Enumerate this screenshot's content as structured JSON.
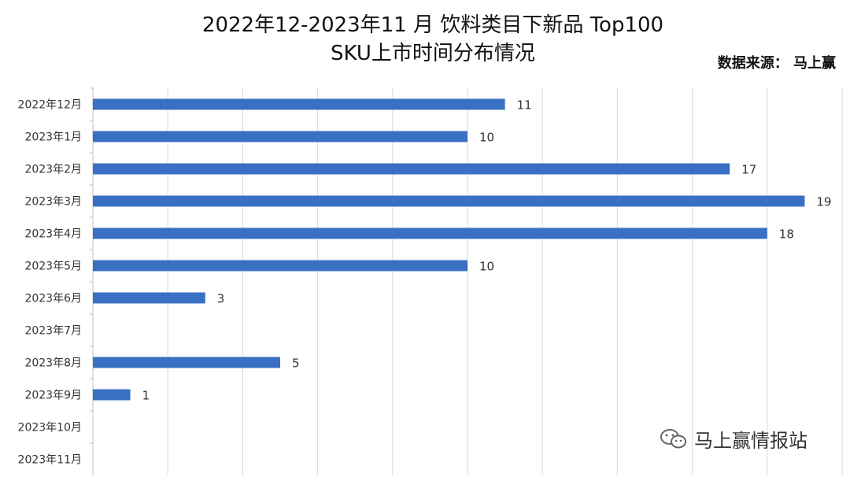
{
  "chart_data": {
    "type": "bar",
    "orientation": "horizontal",
    "title_line1": "2022年12-2023年11 月 饮料类目下新品 Top100",
    "title_line2": "SKU上市时间分布情况",
    "source": "数据来源： 马上赢",
    "categories": [
      "2022年12月",
      "2023年1月",
      "2023年2月",
      "2023年3月",
      "2023年4月",
      "2023年5月",
      "2023年6月",
      "2023年7月",
      "2023年8月",
      "2023年9月",
      "2023年10月",
      "2023年11月"
    ],
    "values": [
      11,
      10,
      17,
      19,
      18,
      10,
      3,
      null,
      5,
      1,
      null,
      null
    ],
    "xlim": [
      0,
      20
    ],
    "grid": true,
    "bar_color": "#3A70C3",
    "grid_color": "#d9d9d9"
  },
  "watermark": {
    "text": "马上赢情报站",
    "icon": "wechat-icon"
  }
}
